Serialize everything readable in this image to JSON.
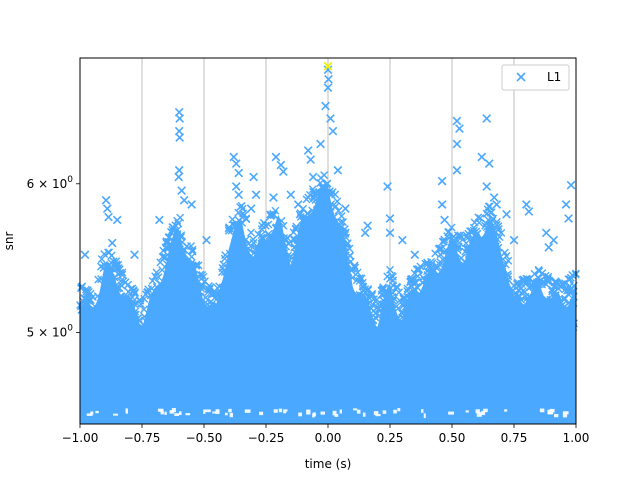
{
  "chart_data": {
    "type": "scatter",
    "xlabel": "time (s)",
    "ylabel": "snr",
    "xlim": [
      -1.0,
      1.0
    ],
    "ylim": [
      4.47,
      7.0
    ],
    "yscale": "log",
    "grid": "x-major vertical lines",
    "legend_position": "top-right",
    "x_ticks": [
      {
        "value": -1.0,
        "label": "−1.00"
      },
      {
        "value": -0.75,
        "label": "−0.75"
      },
      {
        "value": -0.5,
        "label": "−0.50"
      },
      {
        "value": -0.25,
        "label": "−0.25"
      },
      {
        "value": 0.0,
        "label": "0.00"
      },
      {
        "value": 0.25,
        "label": "0.25"
      },
      {
        "value": 0.5,
        "label": "0.50"
      },
      {
        "value": 0.75,
        "label": "0.75"
      },
      {
        "value": 1.0,
        "label": "1.00"
      }
    ],
    "y_ticks": [
      {
        "value": 5,
        "label_mantissa": "5",
        "label_times": "×",
        "label_base": "10",
        "label_exp": "0"
      },
      {
        "value": 6,
        "label_mantissa": "6",
        "label_times": "×",
        "label_base": "10",
        "label_exp": "0"
      }
    ],
    "series": [
      {
        "name": "L1",
        "color": "#4aa8ff",
        "marker": "x",
        "points": [
          [
            -0.895,
            5.88
          ],
          [
            -0.89,
            5.82
          ],
          [
            -0.885,
            5.76
          ],
          [
            -0.85,
            5.74
          ],
          [
            -0.87,
            5.58
          ],
          [
            -0.78,
            5.5
          ],
          [
            -0.98,
            5.5
          ],
          [
            -0.68,
            5.74
          ],
          [
            -0.64,
            5.62
          ],
          [
            -0.6,
            6.55
          ],
          [
            -0.598,
            6.5
          ],
          [
            -0.6,
            6.4
          ],
          [
            -0.598,
            6.35
          ],
          [
            -0.6,
            6.1
          ],
          [
            -0.602,
            6.05
          ],
          [
            -0.59,
            5.95
          ],
          [
            -0.58,
            5.88
          ],
          [
            -0.55,
            5.85
          ],
          [
            -0.49,
            5.6
          ],
          [
            -0.38,
            6.2
          ],
          [
            -0.37,
            6.15
          ],
          [
            -0.36,
            6.08
          ],
          [
            -0.37,
            5.98
          ],
          [
            -0.36,
            5.92
          ],
          [
            -0.31,
            5.82
          ],
          [
            -0.3,
            6.05
          ],
          [
            -0.29,
            5.92
          ],
          [
            -0.22,
            5.78
          ],
          [
            -0.22,
            5.9
          ],
          [
            -0.21,
            6.2
          ],
          [
            -0.19,
            6.14
          ],
          [
            -0.18,
            6.09
          ],
          [
            -0.15,
            5.92
          ],
          [
            -0.12,
            5.85
          ],
          [
            -0.08,
            6.25
          ],
          [
            -0.07,
            6.18
          ],
          [
            -0.06,
            6.05
          ],
          [
            -0.03,
            6.3
          ],
          [
            -0.01,
            6.6
          ],
          [
            0.0,
            6.75
          ],
          [
            0.002,
            6.82
          ],
          [
            0.0,
            6.9
          ],
          [
            0.01,
            6.5
          ],
          [
            0.02,
            6.4
          ],
          [
            0.04,
            6.1
          ],
          [
            0.07,
            5.82
          ],
          [
            0.15,
            5.65
          ],
          [
            0.16,
            5.7
          ],
          [
            0.24,
            5.98
          ],
          [
            0.25,
            5.75
          ],
          [
            0.25,
            5.65
          ],
          [
            0.3,
            5.6
          ],
          [
            0.35,
            5.5
          ],
          [
            0.46,
            6.02
          ],
          [
            0.46,
            5.85
          ],
          [
            0.47,
            5.74
          ],
          [
            0.52,
            6.48
          ],
          [
            0.53,
            6.42
          ],
          [
            0.52,
            6.3
          ],
          [
            0.52,
            6.1
          ],
          [
            0.62,
            6.2
          ],
          [
            0.64,
            6.5
          ],
          [
            0.65,
            6.15
          ],
          [
            0.64,
            5.98
          ],
          [
            0.67,
            5.9
          ],
          [
            0.68,
            5.85
          ],
          [
            0.72,
            5.78
          ],
          [
            0.75,
            5.6
          ],
          [
            0.8,
            5.85
          ],
          [
            0.81,
            5.8
          ],
          [
            0.88,
            5.65
          ],
          [
            0.89,
            5.55
          ],
          [
            0.91,
            5.6
          ],
          [
            0.96,
            5.85
          ],
          [
            0.97,
            5.75
          ],
          [
            0.98,
            5.99
          ]
        ]
      }
    ],
    "dense_band_envelope": [
      [
        -1.0,
        5.3
      ],
      [
        -0.95,
        5.25
      ],
      [
        -0.9,
        5.55
      ],
      [
        -0.85,
        5.45
      ],
      [
        -0.8,
        5.3
      ],
      [
        -0.75,
        5.2
      ],
      [
        -0.7,
        5.35
      ],
      [
        -0.65,
        5.6
      ],
      [
        -0.6,
        5.8
      ],
      [
        -0.55,
        5.55
      ],
      [
        -0.5,
        5.35
      ],
      [
        -0.45,
        5.25
      ],
      [
        -0.4,
        5.7
      ],
      [
        -0.35,
        5.85
      ],
      [
        -0.3,
        5.6
      ],
      [
        -0.25,
        5.75
      ],
      [
        -0.2,
        5.85
      ],
      [
        -0.15,
        5.6
      ],
      [
        -0.1,
        5.85
      ],
      [
        -0.05,
        6.0
      ],
      [
        0.0,
        6.1
      ],
      [
        0.05,
        5.8
      ],
      [
        0.1,
        5.45
      ],
      [
        0.15,
        5.3
      ],
      [
        0.2,
        5.2
      ],
      [
        0.25,
        5.4
      ],
      [
        0.3,
        5.2
      ],
      [
        0.35,
        5.4
      ],
      [
        0.4,
        5.45
      ],
      [
        0.45,
        5.55
      ],
      [
        0.5,
        5.7
      ],
      [
        0.55,
        5.6
      ],
      [
        0.6,
        5.75
      ],
      [
        0.65,
        5.85
      ],
      [
        0.7,
        5.65
      ],
      [
        0.75,
        5.3
      ],
      [
        0.8,
        5.35
      ],
      [
        0.85,
        5.4
      ],
      [
        0.9,
        5.35
      ],
      [
        0.95,
        5.3
      ],
      [
        1.0,
        5.4
      ]
    ],
    "dense_band_floor": 4.5,
    "highlight_point": {
      "x": 0.0,
      "y": 6.93,
      "color": "#f2f200"
    }
  }
}
